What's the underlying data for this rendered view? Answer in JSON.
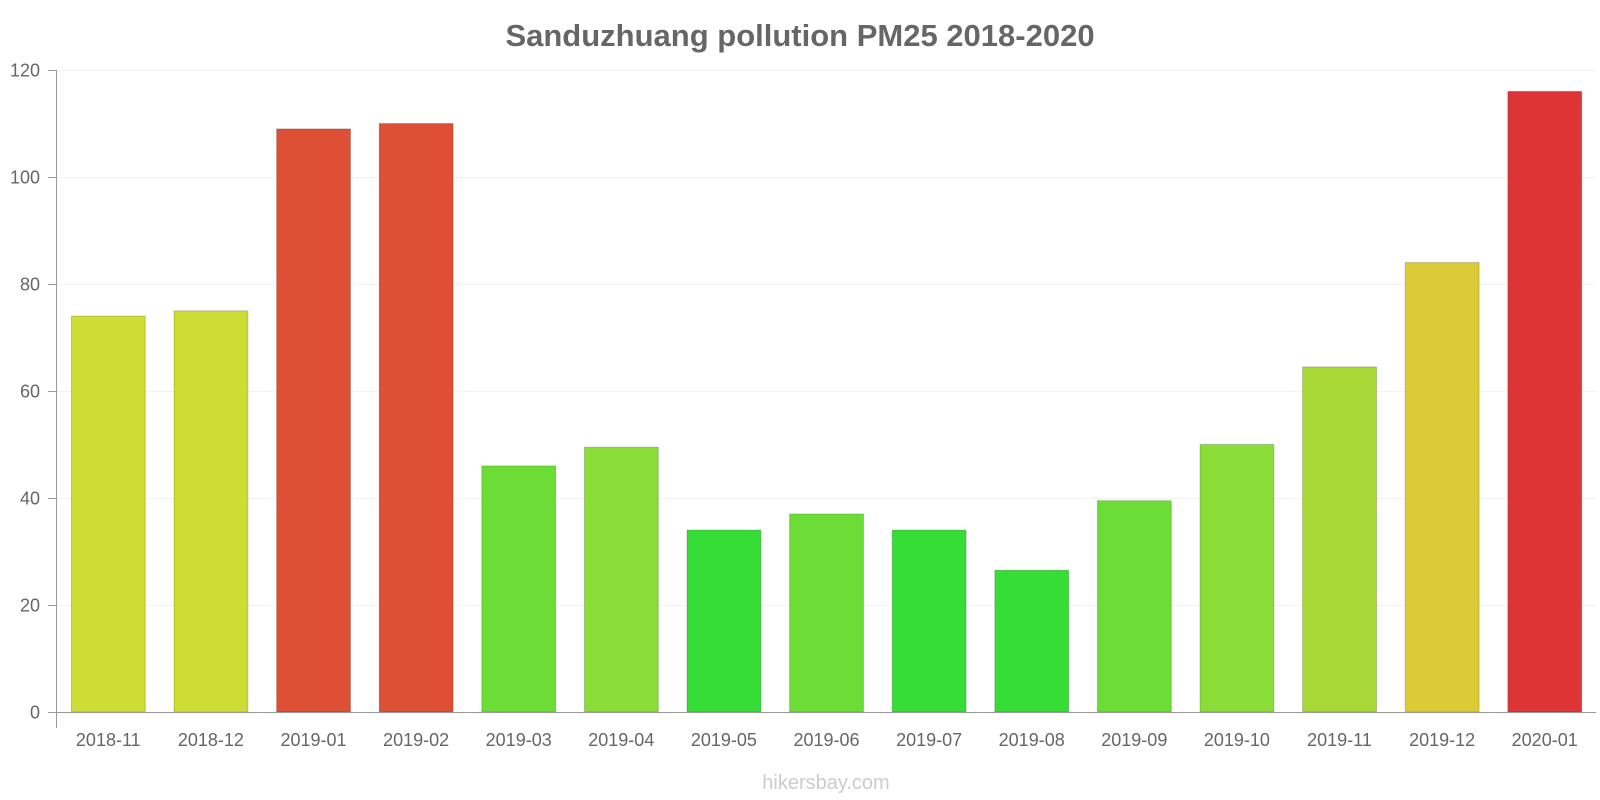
{
  "chart_data": {
    "type": "bar",
    "title": "Sanduzhuang pollution PM25 2018-2020",
    "xlabel": "",
    "ylabel": "",
    "ylim": [
      0,
      120
    ],
    "yticks": [
      0,
      20,
      40,
      60,
      80,
      100,
      120
    ],
    "categories": [
      "2018-11",
      "2018-12",
      "2019-01",
      "2019-02",
      "2019-03",
      "2019-04",
      "2019-05",
      "2019-06",
      "2019-07",
      "2019-08",
      "2019-09",
      "2019-10",
      "2019-11",
      "2019-12",
      "2020-01"
    ],
    "values": [
      74,
      75,
      109,
      110,
      46,
      49.5,
      34,
      37,
      34,
      26.5,
      39.5,
      50,
      64.5,
      84,
      116
    ],
    "colors": [
      "#cedd36",
      "#cedd36",
      "#dd5035",
      "#dd5035",
      "#6bdd36",
      "#8adc36",
      "#36dd36",
      "#6bdd36",
      "#36dd36",
      "#36dd36",
      "#6bdd36",
      "#8adc36",
      "#a8d836",
      "#dccb36",
      "#dd3535"
    ],
    "grid": true,
    "legend": "none"
  },
  "footer": {
    "source": "hikersbay.com"
  }
}
